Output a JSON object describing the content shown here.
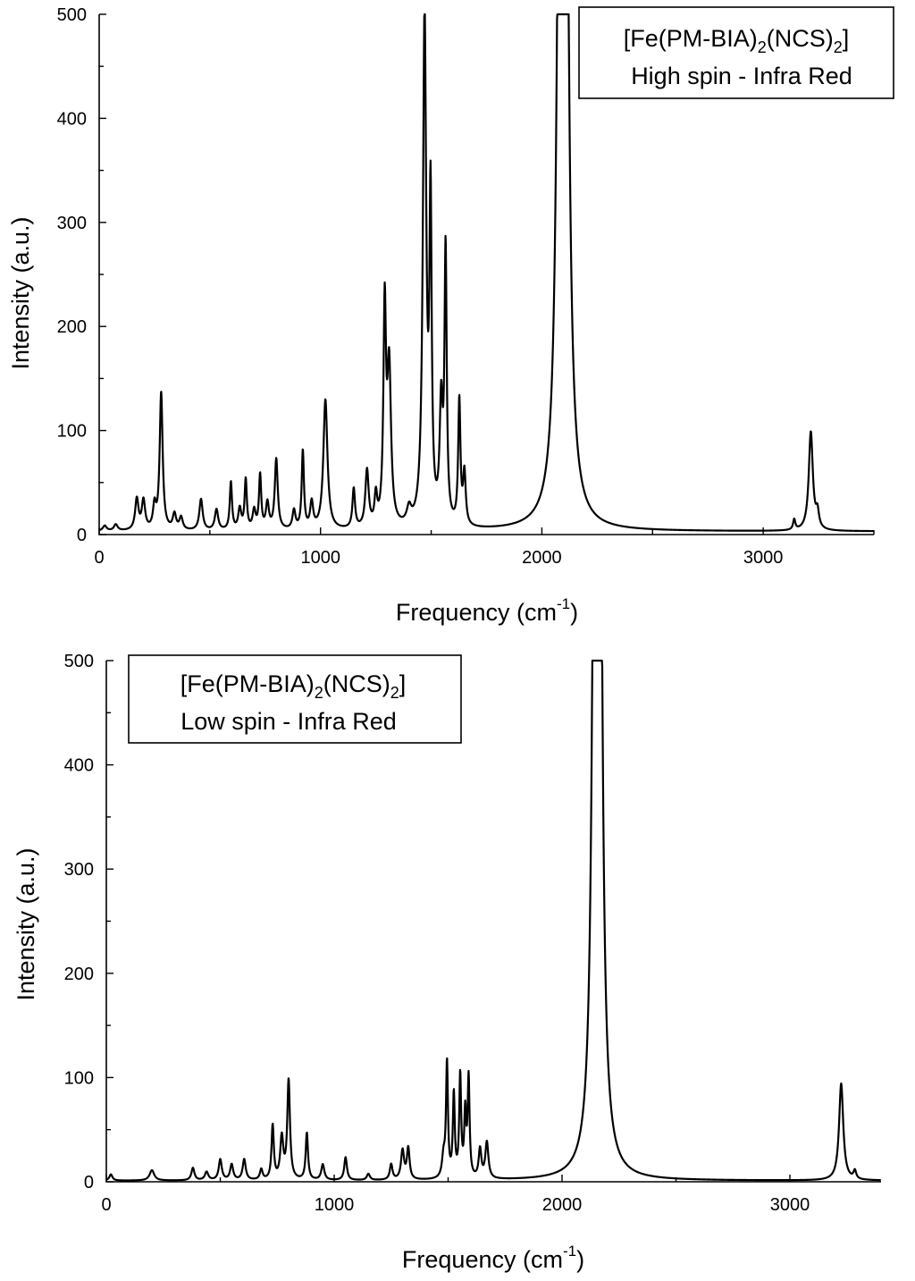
{
  "chart_data": [
    {
      "type": "line",
      "legend": {
        "compound_prefix": "[Fe(PM-BIA)",
        "compound_sub1": "2",
        "compound_mid": "(NCS)",
        "compound_sub2": "2",
        "compound_suffix": "]",
        "description": "High spin - Infra Red",
        "position": "top-right"
      },
      "xlabel_main": "Frequency (cm",
      "xlabel_sup": "-1",
      "xlabel_close": ")",
      "ylabel": "Intensity (a.u.)",
      "xlim": [
        0,
        3500
      ],
      "ylim": [
        0,
        500
      ],
      "xticks": [
        0,
        1000,
        2000,
        3000
      ],
      "yticks": [
        0,
        100,
        200,
        300,
        400,
        500
      ],
      "baseline": 3,
      "peaks": [
        {
          "x": 25,
          "y": 5,
          "w": 10
        },
        {
          "x": 75,
          "y": 6,
          "w": 10
        },
        {
          "x": 170,
          "y": 30,
          "w": 9
        },
        {
          "x": 200,
          "y": 28,
          "w": 9
        },
        {
          "x": 250,
          "y": 22,
          "w": 8
        },
        {
          "x": 280,
          "y": 132,
          "w": 8
        },
        {
          "x": 340,
          "y": 15,
          "w": 9
        },
        {
          "x": 370,
          "y": 12,
          "w": 9
        },
        {
          "x": 460,
          "y": 30,
          "w": 9
        },
        {
          "x": 530,
          "y": 20,
          "w": 9
        },
        {
          "x": 595,
          "y": 46,
          "w": 6
        },
        {
          "x": 635,
          "y": 20,
          "w": 8
        },
        {
          "x": 662,
          "y": 48,
          "w": 6
        },
        {
          "x": 700,
          "y": 18,
          "w": 8
        },
        {
          "x": 727,
          "y": 52,
          "w": 6
        },
        {
          "x": 760,
          "y": 25,
          "w": 8
        },
        {
          "x": 800,
          "y": 68,
          "w": 8
        },
        {
          "x": 880,
          "y": 18,
          "w": 8
        },
        {
          "x": 920,
          "y": 75,
          "w": 6
        },
        {
          "x": 960,
          "y": 25,
          "w": 8
        },
        {
          "x": 1022,
          "y": 125,
          "w": 11
        },
        {
          "x": 1150,
          "y": 38,
          "w": 7
        },
        {
          "x": 1210,
          "y": 55,
          "w": 9
        },
        {
          "x": 1250,
          "y": 28,
          "w": 7
        },
        {
          "x": 1290,
          "y": 205,
          "w": 7
        },
        {
          "x": 1310,
          "y": 150,
          "w": 10
        },
        {
          "x": 1400,
          "y": 15,
          "w": 12
        },
        {
          "x": 1470,
          "y": 490,
          "w": 9
        },
        {
          "x": 1497,
          "y": 300,
          "w": 6
        },
        {
          "x": 1545,
          "y": 110,
          "w": 8
        },
        {
          "x": 1565,
          "y": 260,
          "w": 6
        },
        {
          "x": 1627,
          "y": 120,
          "w": 6
        },
        {
          "x": 1650,
          "y": 50,
          "w": 7
        },
        {
          "x": 2085,
          "y": 900,
          "w": 14
        },
        {
          "x": 2105,
          "y": 900,
          "w": 14
        },
        {
          "x": 3140,
          "y": 10,
          "w": 6
        },
        {
          "x": 3215,
          "y": 95,
          "w": 11
        },
        {
          "x": 3245,
          "y": 15,
          "w": 8
        }
      ]
    },
    {
      "type": "line",
      "legend": {
        "compound_prefix": "[Fe(PM-BIA)",
        "compound_sub1": "2",
        "compound_mid": "(NCS)",
        "compound_sub2": "2",
        "compound_suffix": "]",
        "description": "Low spin - Infra Red",
        "position": "top-left"
      },
      "xlabel_main": "Frequency (cm",
      "xlabel_sup": "-1",
      "xlabel_close": ")",
      "ylabel": "Intensity (a.u.)",
      "xlim": [
        0,
        3400
      ],
      "ylim": [
        0,
        500
      ],
      "xticks": [
        0,
        1000,
        2000,
        3000
      ],
      "yticks": [
        0,
        100,
        200,
        300,
        400,
        500
      ],
      "baseline": 1,
      "peaks": [
        {
          "x": 20,
          "y": 6,
          "w": 8
        },
        {
          "x": 200,
          "y": 10,
          "w": 12
        },
        {
          "x": 380,
          "y": 12,
          "w": 8
        },
        {
          "x": 440,
          "y": 8,
          "w": 9
        },
        {
          "x": 500,
          "y": 20,
          "w": 8
        },
        {
          "x": 550,
          "y": 15,
          "w": 8
        },
        {
          "x": 605,
          "y": 20,
          "w": 8
        },
        {
          "x": 680,
          "y": 10,
          "w": 7
        },
        {
          "x": 730,
          "y": 52,
          "w": 6
        },
        {
          "x": 770,
          "y": 40,
          "w": 8
        },
        {
          "x": 800,
          "y": 95,
          "w": 7
        },
        {
          "x": 880,
          "y": 45,
          "w": 6
        },
        {
          "x": 950,
          "y": 15,
          "w": 8
        },
        {
          "x": 1050,
          "y": 22,
          "w": 7
        },
        {
          "x": 1150,
          "y": 6,
          "w": 8
        },
        {
          "x": 1250,
          "y": 15,
          "w": 7
        },
        {
          "x": 1300,
          "y": 28,
          "w": 8
        },
        {
          "x": 1325,
          "y": 30,
          "w": 7
        },
        {
          "x": 1480,
          "y": 20,
          "w": 8
        },
        {
          "x": 1495,
          "y": 110,
          "w": 5
        },
        {
          "x": 1525,
          "y": 80,
          "w": 5
        },
        {
          "x": 1553,
          "y": 98,
          "w": 5
        },
        {
          "x": 1575,
          "y": 60,
          "w": 5
        },
        {
          "x": 1590,
          "y": 95,
          "w": 5
        },
        {
          "x": 1640,
          "y": 28,
          "w": 7
        },
        {
          "x": 1670,
          "y": 35,
          "w": 8
        },
        {
          "x": 2147,
          "y": 900,
          "w": 12
        },
        {
          "x": 2162,
          "y": 900,
          "w": 12
        },
        {
          "x": 3225,
          "y": 93,
          "w": 11
        },
        {
          "x": 3285,
          "y": 8,
          "w": 7
        }
      ]
    }
  ]
}
